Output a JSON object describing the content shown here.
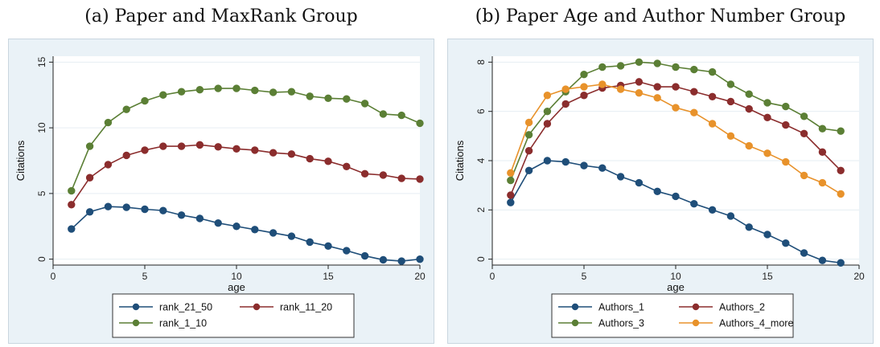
{
  "panels": [
    {
      "caption": "(a) Paper and MaxRank Group",
      "chart_data": {
        "type": "line",
        "xlabel": "age",
        "ylabel": "Citations",
        "xlim": [
          0,
          20
        ],
        "ylim": [
          0,
          15
        ],
        "xticks": [
          0,
          5,
          10,
          15,
          20
        ],
        "yticks": [
          0,
          5,
          10,
          15
        ],
        "grid": "horizontal",
        "legend": "bottom",
        "x": [
          1,
          2,
          3,
          4,
          5,
          6,
          7,
          8,
          9,
          10,
          11,
          12,
          13,
          14,
          15,
          16,
          17,
          18,
          19,
          20
        ],
        "series": [
          {
            "name": "rank_21_50",
            "color": "#1f4e79",
            "values": [
              2.3,
              3.6,
              4.0,
              3.95,
              3.8,
              3.7,
              3.35,
              3.1,
              2.75,
              2.5,
              2.25,
              2.0,
              1.75,
              1.3,
              1.0,
              0.65,
              0.25,
              -0.05,
              -0.15,
              0.0
            ]
          },
          {
            "name": "rank_11_20",
            "color": "#8b2d2d",
            "values": [
              4.15,
              6.2,
              7.2,
              7.9,
              8.3,
              8.6,
              8.6,
              8.7,
              8.55,
              8.4,
              8.3,
              8.1,
              8.0,
              7.65,
              7.45,
              7.05,
              6.5,
              6.4,
              6.15,
              6.1
            ]
          },
          {
            "name": "rank_1_10",
            "color": "#5b7f35",
            "values": [
              5.2,
              8.6,
              10.4,
              11.4,
              12.05,
              12.5,
              12.75,
              12.9,
              13.0,
              13.0,
              12.85,
              12.7,
              12.75,
              12.4,
              12.25,
              12.2,
              11.85,
              11.05,
              10.95,
              10.35
            ]
          }
        ]
      }
    },
    {
      "caption": "(b) Paper Age and Author Number Group",
      "chart_data": {
        "type": "line",
        "xlabel": "age",
        "ylabel": "Citations",
        "xlim": [
          0,
          20
        ],
        "ylim": [
          0,
          8
        ],
        "xticks": [
          0,
          5,
          10,
          15,
          20
        ],
        "yticks": [
          0,
          2,
          4,
          6,
          8
        ],
        "grid": "horizontal",
        "legend": "bottom",
        "x": [
          1,
          2,
          3,
          4,
          5,
          6,
          7,
          8,
          9,
          10,
          11,
          12,
          13,
          14,
          15,
          16,
          17,
          18,
          19
        ],
        "series": [
          {
            "name": "Authors_1",
            "color": "#1f4e79",
            "values": [
              2.3,
              3.6,
              4.0,
              3.95,
              3.8,
              3.7,
              3.35,
              3.1,
              2.75,
              2.55,
              2.25,
              2.0,
              1.75,
              1.3,
              1.0,
              0.65,
              0.25,
              -0.05,
              -0.15
            ]
          },
          {
            "name": "Authors_2",
            "color": "#8b2d2d",
            "values": [
              2.6,
              4.4,
              5.5,
              6.3,
              6.65,
              6.95,
              7.05,
              7.2,
              7.0,
              7.0,
              6.8,
              6.6,
              6.4,
              6.1,
              5.75,
              5.45,
              5.1,
              4.35,
              3.6
            ]
          },
          {
            "name": "Authors_3",
            "color": "#5b7f35",
            "values": [
              3.2,
              5.05,
              6.0,
              6.8,
              7.5,
              7.8,
              7.85,
              8.0,
              7.95,
              7.8,
              7.7,
              7.6,
              7.1,
              6.7,
              6.35,
              6.2,
              5.8,
              5.3,
              5.2
            ]
          },
          {
            "name": "Authors_4_more",
            "color": "#e8922b",
            "values": [
              3.5,
              5.55,
              6.65,
              6.9,
              7.0,
              7.1,
              6.9,
              6.75,
              6.55,
              6.15,
              5.95,
              5.5,
              5.0,
              4.6,
              4.3,
              3.95,
              3.4,
              3.1,
              2.65
            ]
          }
        ]
      }
    }
  ]
}
